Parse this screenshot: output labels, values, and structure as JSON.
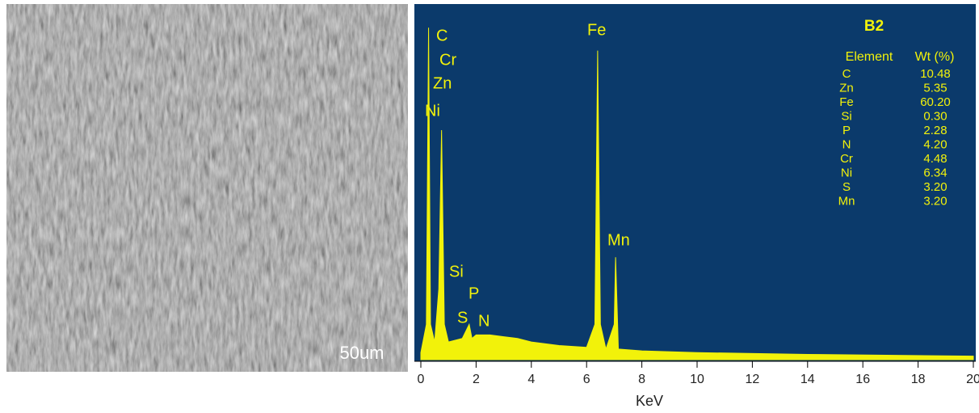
{
  "image": {
    "scale_bar": "50um"
  },
  "chart_data": {
    "type": "line",
    "title": "B2",
    "x_label": "KeV",
    "color": "#f2f20a",
    "background": "#0b3a6b",
    "x": [
      0,
      0.2,
      0.28,
      0.35,
      0.5,
      0.65,
      0.75,
      0.85,
      1.0,
      1.5,
      1.75,
      1.85,
      2.0,
      2.5,
      3,
      3.5,
      4,
      5,
      6,
      6.3,
      6.4,
      6.5,
      6.7,
      7.0,
      7.05,
      7.15,
      8,
      10,
      14,
      20
    ],
    "values": [
      2,
      10,
      94,
      10,
      5,
      20,
      65,
      10,
      5,
      6,
      10,
      6,
      7,
      7,
      6.5,
      6,
      5,
      4,
      3.5,
      10,
      87.5,
      10,
      3,
      10,
      29,
      3,
      2.5,
      2,
      1.5,
      1
    ],
    "xlim": [
      0,
      20
    ],
    "xticks": [
      0,
      2,
      4,
      6,
      8,
      10,
      12,
      14,
      16,
      18,
      20
    ],
    "ylim": [
      0,
      100
    ],
    "peak_labels": [
      "C",
      "Cr",
      "Zn",
      "Ni",
      "Si",
      "P",
      "S",
      "N",
      "Fe",
      "Mn"
    ],
    "table": {
      "columns": [
        "Element",
        "Wt (%)"
      ],
      "rows": [
        [
          "C",
          "10.48"
        ],
        [
          "Zn",
          "5.35"
        ],
        [
          "Fe",
          "60.20"
        ],
        [
          "Si",
          "0.30"
        ],
        [
          "P",
          "2.28"
        ],
        [
          "N",
          "4.20"
        ],
        [
          "Cr",
          "4.48"
        ],
        [
          "Ni",
          "6.34"
        ],
        [
          "S",
          "3.20"
        ],
        [
          "Mn",
          "3.20"
        ]
      ]
    }
  }
}
